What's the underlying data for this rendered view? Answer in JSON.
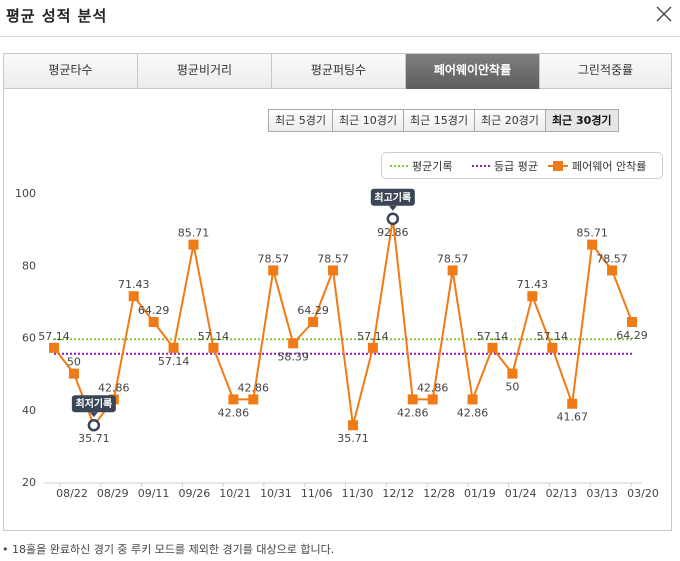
{
  "window": {
    "title": "평균 성적 분석"
  },
  "tabs": [
    {
      "label": "평균타수",
      "active": false
    },
    {
      "label": "평균비거리",
      "active": false
    },
    {
      "label": "평균퍼팅수",
      "active": false
    },
    {
      "label": "페어웨이안착률",
      "active": true
    },
    {
      "label": "그린적중률",
      "active": false
    }
  ],
  "range_buttons": [
    {
      "label": "최근 5경기",
      "active": false
    },
    {
      "label": "최근 10경기",
      "active": false
    },
    {
      "label": "최근 15경기",
      "active": false
    },
    {
      "label": "최근 20경기",
      "active": false
    },
    {
      "label": "최근 30경기",
      "active": true
    }
  ],
  "legend": {
    "average_record": "평균기록",
    "grade_average": "등급 평균",
    "series": "페어웨어 안착률"
  },
  "callouts": {
    "best": "최고기록",
    "worst": "최저기록"
  },
  "footnote": "• 18홀을 완료하신 경기 중 루키 모드를 제외한 경기를 대상으로 합니다.",
  "colors": {
    "series": "#f07a16",
    "average_line": "#88c63a",
    "grade_line": "#9a18b3",
    "active_tab": "#6a6a6a",
    "callout_bg": "#3a4656"
  },
  "icons": {
    "close": "close-icon"
  },
  "chart_data": {
    "type": "line",
    "ylim": [
      20,
      100
    ],
    "yticks": [
      20,
      40,
      60,
      80,
      100
    ],
    "xticks": [
      "08/22",
      "08/29",
      "09/11",
      "09/26",
      "10/21",
      "10/31",
      "11/06",
      "11/30",
      "12/12",
      "12/28",
      "01/19",
      "01/24",
      "02/13",
      "03/13",
      "03/20"
    ],
    "series": [
      {
        "name": "페어웨어 안착률",
        "values": [
          57.14,
          50,
          35.71,
          42.86,
          71.43,
          64.29,
          57.14,
          85.71,
          57.14,
          42.86,
          42.86,
          78.57,
          58.39,
          64.29,
          78.57,
          35.71,
          57.14,
          92.86,
          42.86,
          42.86,
          78.57,
          42.86,
          57.14,
          50,
          71.43,
          57.14,
          41.67,
          85.71,
          78.57,
          64.29
        ],
        "labels": [
          "57.14",
          "50",
          "35.71",
          "42.86",
          "71.43",
          "64.29",
          "57.14",
          "85.71",
          "57.14",
          "42.86",
          "42.86",
          "78.57",
          "58.39",
          "64.29",
          "78.57",
          "35.71",
          "57.14",
          "92.86",
          "42.86",
          "42.86",
          "78.57",
          "42.86",
          "57.14",
          "50",
          "71.43",
          "57.14",
          "41.67",
          "85.71",
          "78.57",
          "64.29"
        ]
      }
    ],
    "average_record": 59.5,
    "grade_average": 55.5,
    "max_index": 17,
    "min_index": 2,
    "grid": false,
    "legend_position": "top-right"
  }
}
